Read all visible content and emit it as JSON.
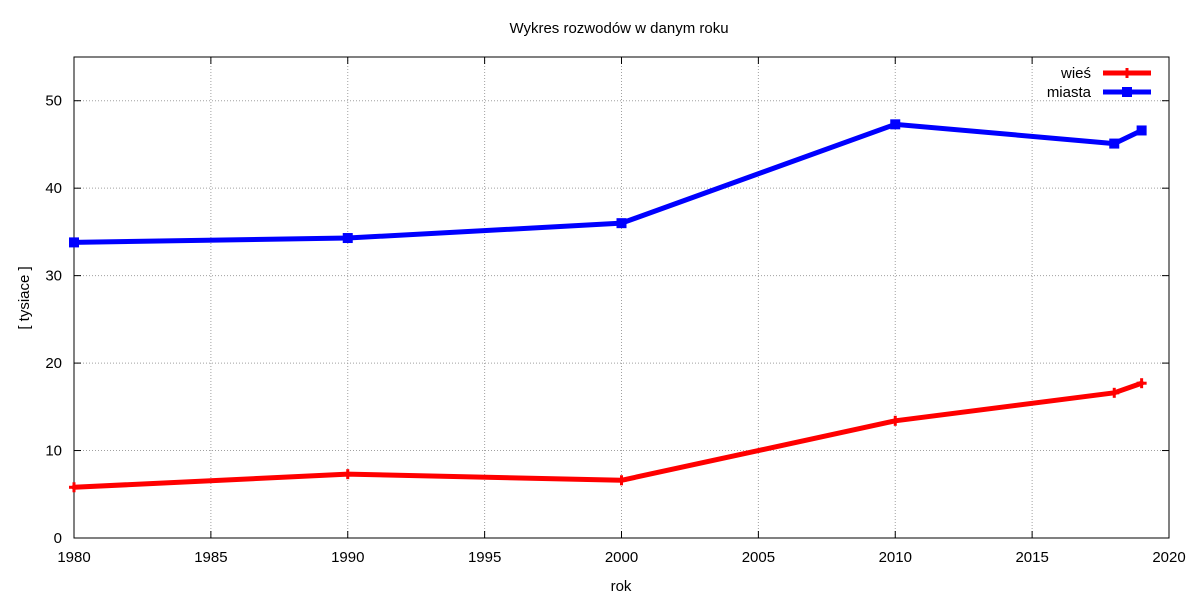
{
  "chart_data": {
    "type": "line",
    "title": "Wykres rozwodów w danym roku",
    "xlabel": "rok",
    "ylabel": "[ tysiace ]",
    "xlim": [
      1980,
      2020
    ],
    "ylim": [
      0,
      55
    ],
    "xticks": [
      1980,
      1985,
      1990,
      1995,
      2000,
      2005,
      2010,
      2015,
      2020
    ],
    "yticks": [
      0,
      10,
      20,
      30,
      40,
      50
    ],
    "grid": true,
    "legend_position": "top-right",
    "series": [
      {
        "name": "wieś",
        "color": "#ff0000",
        "marker": "plus",
        "x": [
          1980,
          1990,
          2000,
          2010,
          2018,
          2019
        ],
        "y": [
          5.8,
          7.3,
          6.6,
          13.4,
          16.6,
          17.7
        ]
      },
      {
        "name": "miasta",
        "color": "#0000ff",
        "marker": "square",
        "x": [
          1980,
          1990,
          2000,
          2010,
          2018,
          2019
        ],
        "y": [
          33.8,
          34.3,
          36.0,
          47.3,
          45.1,
          46.6
        ]
      }
    ]
  }
}
